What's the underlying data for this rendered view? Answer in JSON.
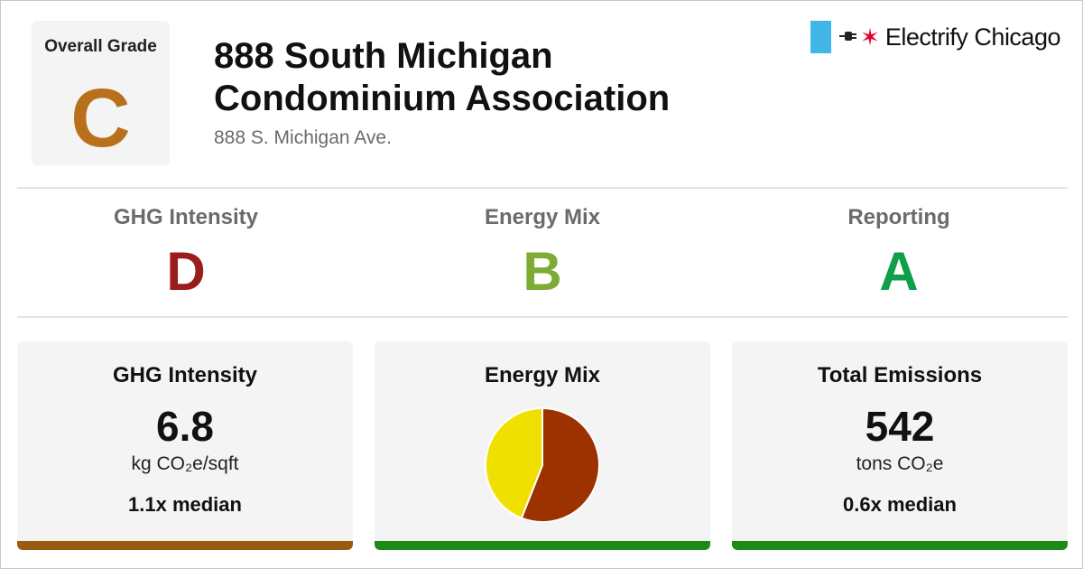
{
  "overall": {
    "label": "Overall Grade",
    "grade": "C",
    "color": "#b8701a"
  },
  "building": {
    "name": "888 South Michigan Condominium Association",
    "address": "888 S. Michigan Ave."
  },
  "brand": {
    "name": "Electrify Chicago",
    "icon": "plug-icon",
    "star_icon": "star-icon",
    "flag_color": "#41b6e6",
    "star_color": "#e4002b"
  },
  "grades": [
    {
      "label": "GHG Intensity",
      "grade": "D",
      "color": "#9b1c1c"
    },
    {
      "label": "Energy Mix",
      "grade": "B",
      "color": "#7fab33"
    },
    {
      "label": "Reporting",
      "grade": "A",
      "color": "#0f9e4a"
    }
  ],
  "cards": {
    "ghg": {
      "title": "GHG Intensity",
      "value": "6.8",
      "unit": "kg CO₂e/sqft",
      "median": "1.1x median",
      "bar_color": "#9a5a10"
    },
    "mix": {
      "title": "Energy Mix",
      "bar_color": "#1b8a16"
    },
    "total": {
      "title": "Total Emissions",
      "value": "542",
      "unit": "tons CO₂e",
      "median": "0.6x median",
      "bar_color": "#1b8a16"
    }
  },
  "chart_data": {
    "type": "pie",
    "title": "Energy Mix",
    "series": [
      {
        "values": [
          0.56,
          0.44
        ],
        "colors": [
          "#9b3200",
          "#f0e000"
        ]
      }
    ]
  }
}
